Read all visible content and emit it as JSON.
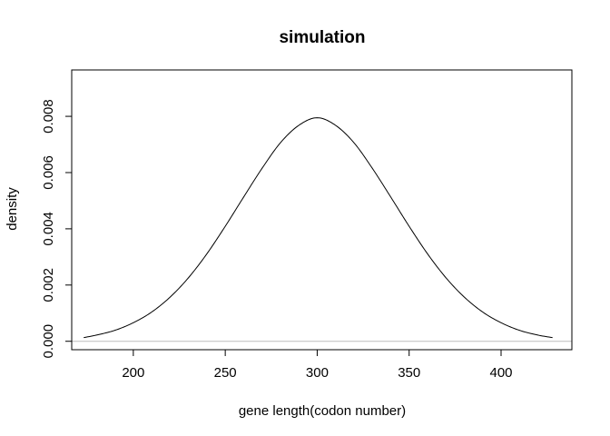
{
  "chart_data": {
    "type": "line",
    "title": "simulation",
    "xlabel": "gene length(codon number)",
    "ylabel": "density",
    "xlim": [
      166.5,
      438.5
    ],
    "ylim": [
      -0.0003,
      0.00965
    ],
    "x_ticks": [
      200,
      250,
      300,
      350,
      400
    ],
    "x_tick_labels": [
      "200",
      "250",
      "300",
      "350",
      "400"
    ],
    "y_ticks": [
      0.0,
      0.002,
      0.004,
      0.006,
      0.008
    ],
    "y_tick_labels": [
      "0.000",
      "0.002",
      "0.004",
      "0.006",
      "0.008"
    ],
    "zero_line": true,
    "zero_line_color": "#bebebe",
    "line_color": "#000000",
    "grid": false,
    "series": [
      {
        "x": [
          173,
          180,
          190,
          200,
          210,
          220,
          230,
          240,
          250,
          260,
          270,
          280,
          290,
          300,
          310,
          320,
          330,
          340,
          350,
          360,
          370,
          380,
          390,
          400,
          410,
          420,
          428
        ],
        "values": [
          0.00013,
          0.00022,
          0.00039,
          0.00066,
          0.00104,
          0.00157,
          0.00226,
          0.00311,
          0.00409,
          0.00513,
          0.00615,
          0.00706,
          0.00768,
          0.00795,
          0.00768,
          0.00706,
          0.00615,
          0.00513,
          0.00409,
          0.00311,
          0.00226,
          0.00157,
          0.00104,
          0.00066,
          0.00039,
          0.00022,
          0.00013
        ]
      }
    ]
  }
}
